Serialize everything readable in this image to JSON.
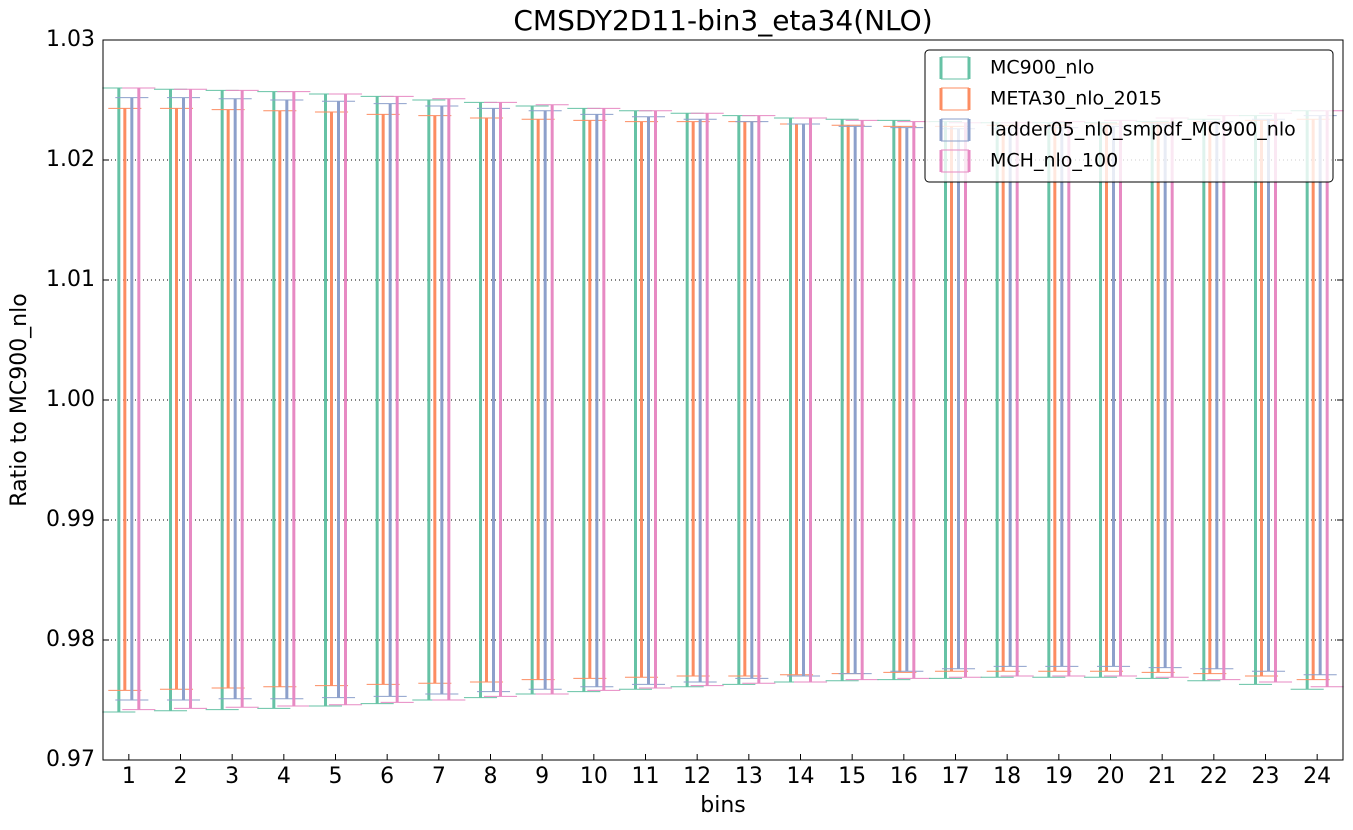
{
  "chart_data": {
    "type": "errorbar",
    "title": "CMSDY2D11-bin3_eta34(NLO)",
    "xlabel": "bins",
    "ylabel": "Ratio to MC900_nlo",
    "categories": [
      "1",
      "2",
      "3",
      "4",
      "5",
      "6",
      "7",
      "8",
      "9",
      "10",
      "11",
      "12",
      "13",
      "14",
      "15",
      "16",
      "17",
      "18",
      "19",
      "20",
      "21",
      "22",
      "23",
      "24"
    ],
    "ylim": [
      0.97,
      1.03
    ],
    "yticks": [
      0.97,
      0.98,
      0.99,
      {
        "value": 1,
        "label": "1.00"
      },
      1.01,
      1.02,
      1.03
    ],
    "grid": true,
    "legend": "upper right",
    "series": [
      {
        "name": "MC900_nlo",
        "color": "#66c2a5",
        "low": [
          0.974,
          0.9741,
          0.9742,
          0.9743,
          0.9745,
          0.9747,
          0.975,
          0.9752,
          0.9755,
          0.9757,
          0.9759,
          0.9761,
          0.9763,
          0.9765,
          0.9766,
          0.9767,
          0.9768,
          0.9769,
          0.9769,
          0.9769,
          0.9768,
          0.9766,
          0.9763,
          0.9759
        ],
        "high": [
          1.026,
          1.0259,
          1.0258,
          1.0257,
          1.0255,
          1.0253,
          1.025,
          1.0248,
          1.0245,
          1.0243,
          1.0241,
          1.0239,
          1.0237,
          1.0235,
          1.0234,
          1.0233,
          1.0232,
          1.0231,
          1.0231,
          1.0231,
          1.0232,
          1.0234,
          1.0237,
          1.0241
        ]
      },
      {
        "name": "META30_nlo_2015",
        "color": "#fc8d62",
        "low": [
          0.9758,
          0.9759,
          0.976,
          0.9761,
          0.9762,
          0.9763,
          0.9764,
          0.9765,
          0.9767,
          0.9768,
          0.9769,
          0.977,
          0.977,
          0.9771,
          0.9772,
          0.9773,
          0.9774,
          0.9774,
          0.9774,
          0.9774,
          0.9773,
          0.9772,
          0.977,
          0.9767
        ],
        "high": [
          1.0243,
          1.0243,
          1.0242,
          1.0241,
          1.024,
          1.0238,
          1.0237,
          1.0235,
          1.0234,
          1.0233,
          1.0232,
          1.0232,
          1.0232,
          1.023,
          1.0229,
          1.0228,
          1.0228,
          1.0229,
          1.0229,
          1.023,
          1.0231,
          1.0232,
          1.0233,
          1.0234
        ]
      },
      {
        "name": "ladder05_nlo_smpdf_MC900_nlo",
        "color": "#8da0cb",
        "low": [
          0.975,
          0.975,
          0.9751,
          0.9751,
          0.9752,
          0.9753,
          0.9755,
          0.9757,
          0.9759,
          0.9761,
          0.9763,
          0.9765,
          0.9768,
          0.977,
          0.9772,
          0.9774,
          0.9776,
          0.9778,
          0.9778,
          0.9778,
          0.9777,
          0.9776,
          0.9774,
          0.9771
        ],
        "high": [
          1.0252,
          1.0252,
          1.0251,
          1.025,
          1.0249,
          1.0247,
          1.0245,
          1.0243,
          1.0241,
          1.0238,
          1.0236,
          1.0234,
          1.0232,
          1.023,
          1.0228,
          1.0227,
          1.0226,
          1.0226,
          1.0227,
          1.0228,
          1.023,
          1.0232,
          1.0234,
          1.0237
        ]
      },
      {
        "name": "MCH_nlo_100",
        "color": "#e78ac3",
        "low": [
          0.9742,
          0.9743,
          0.9744,
          0.9745,
          0.9746,
          0.9748,
          0.975,
          0.9753,
          0.9755,
          0.9758,
          0.976,
          0.9762,
          0.9764,
          0.9765,
          0.9767,
          0.9768,
          0.9769,
          0.977,
          0.977,
          0.977,
          0.9769,
          0.9767,
          0.9765,
          0.9761
        ],
        "high": [
          1.026,
          1.0259,
          1.0258,
          1.0257,
          1.0255,
          1.0253,
          1.0251,
          1.0248,
          1.0246,
          1.0243,
          1.0241,
          1.0239,
          1.0237,
          1.0235,
          1.0233,
          1.0232,
          1.0231,
          1.0231,
          1.0232,
          1.0233,
          1.0235,
          1.0237,
          1.0239,
          1.0241
        ]
      }
    ]
  }
}
